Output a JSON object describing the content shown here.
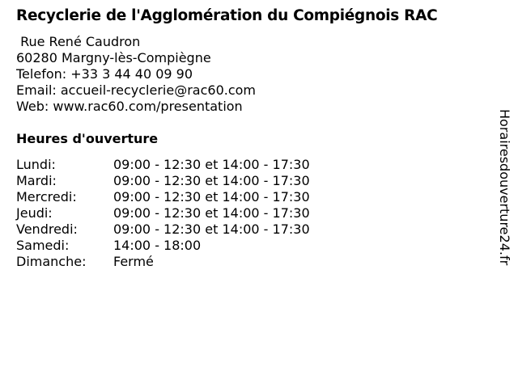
{
  "title": "Recyclerie de l'Agglomération du Compiégnois RAC",
  "address": {
    "street": " Rue René Caudron",
    "city": "60280 Margny-lès-Compiègne",
    "phone": "Telefon: +33 3 44 40 09 90",
    "email": "Email: accueil-recyclerie@rac60.com",
    "web": "Web: www.rac60.com/presentation"
  },
  "hours_heading": "Heures d'ouverture",
  "hours": [
    {
      "day": "Lundi:",
      "time": "09:00 - 12:30 et 14:00 - 17:30"
    },
    {
      "day": "Mardi:",
      "time": "09:00 - 12:30 et 14:00 - 17:30"
    },
    {
      "day": "Mercredi:",
      "time": "09:00 - 12:30 et 14:00 - 17:30"
    },
    {
      "day": "Jeudi:",
      "time": "09:00 - 12:30 et 14:00 - 17:30"
    },
    {
      "day": "Vendredi:",
      "time": "09:00 - 12:30 et 14:00 - 17:30"
    },
    {
      "day": "Samedi:",
      "time": "14:00 - 18:00"
    },
    {
      "day": "Dimanche:",
      "time": "Fermé"
    }
  ],
  "watermark": "Horairesdouverture24.fr"
}
